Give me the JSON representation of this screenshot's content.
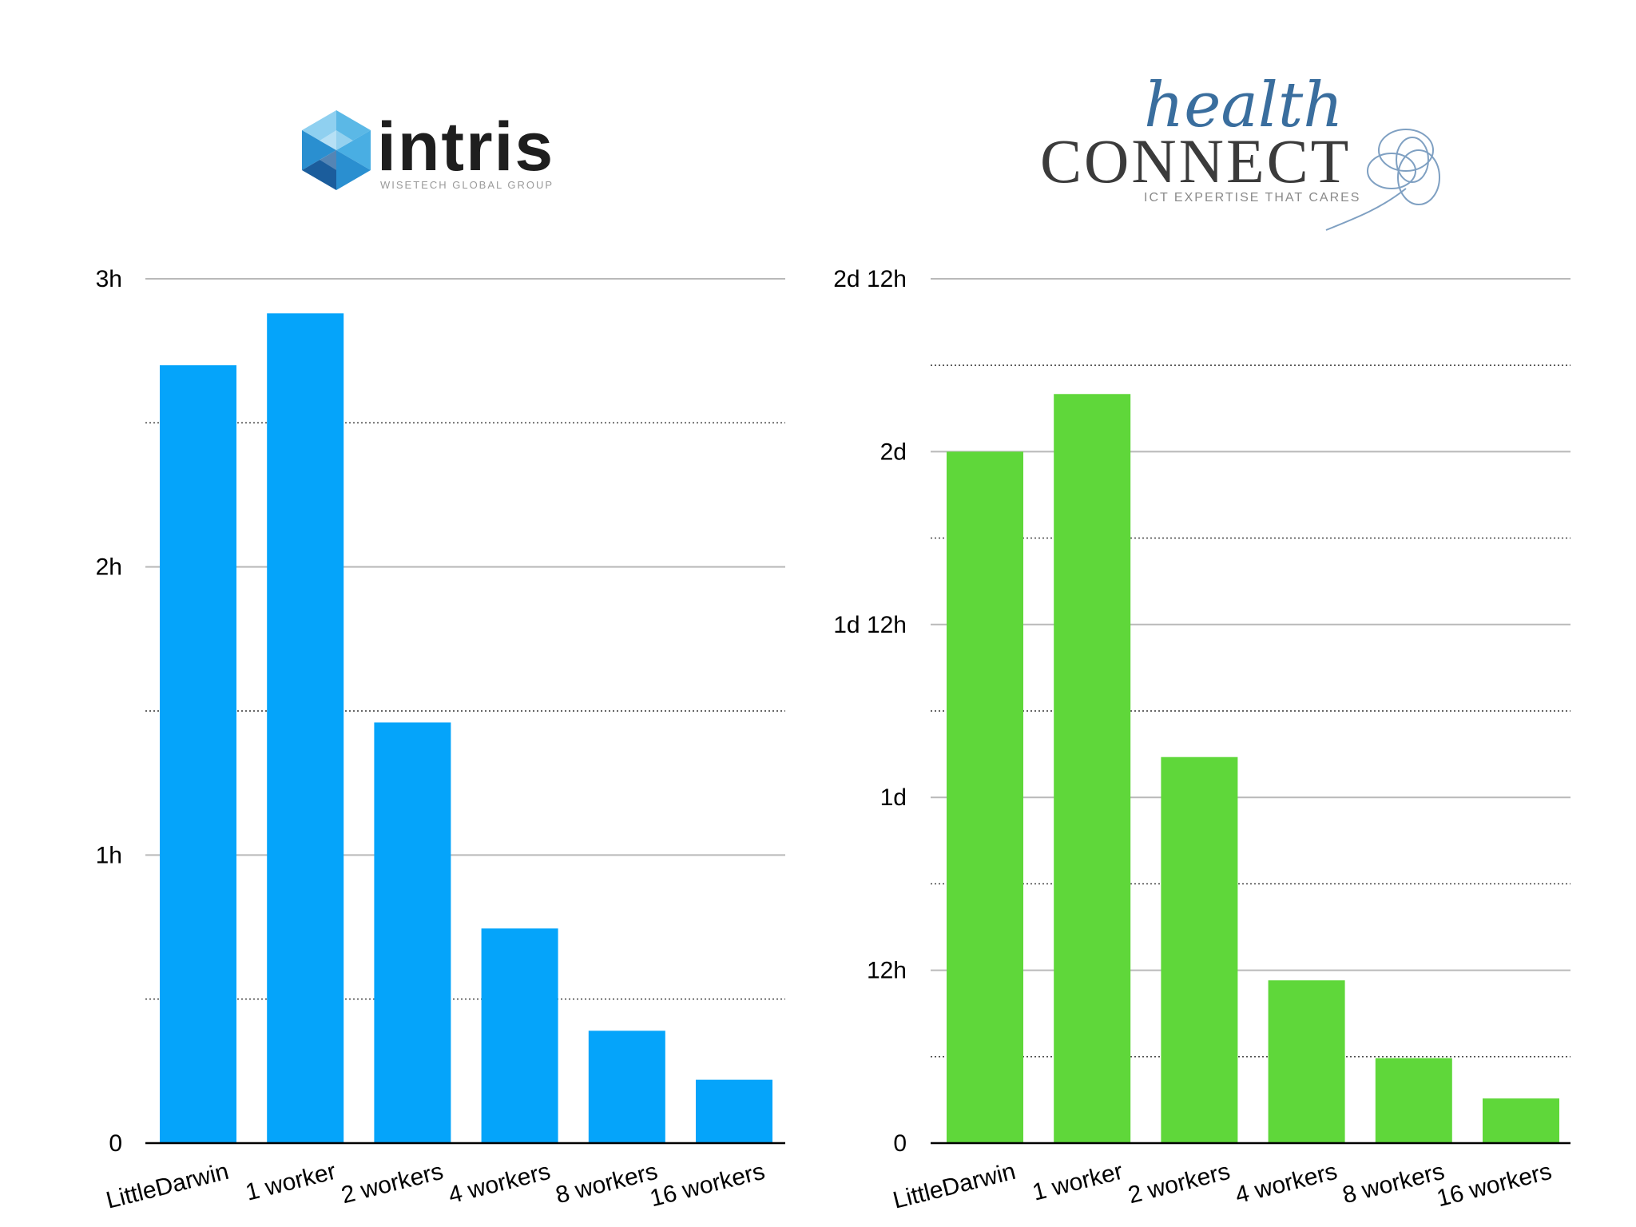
{
  "logos": {
    "left": {
      "name": "intris",
      "tagline": "WISETECH GLOBAL GROUP",
      "colors": {
        "cube_light": "#5bb8e6",
        "cube_mid": "#2a8fd0",
        "cube_dark": "#1b5d9c",
        "text": "#1e1e1e",
        "tagline": "#9a9a9a"
      }
    },
    "right": {
      "script": "health",
      "name": "CONNECT",
      "tagline": "ICT EXPERTISE THAT CARES",
      "colors": {
        "script": "#3a6e9e",
        "text": "#3b3b3b",
        "tagline": "#8a8a8a",
        "swirl": "#7fa0c2"
      }
    }
  },
  "chart_data": [
    {
      "type": "bar",
      "id": "intris",
      "categories": [
        "LittleDarwin",
        "1 worker",
        "2 workers",
        "4 workers",
        "8 workers",
        "16 workers"
      ],
      "values": [
        2.7,
        2.88,
        1.46,
        0.745,
        0.39,
        0.22
      ],
      "unit": "hours",
      "ylim": [
        0,
        3
      ],
      "major_ticks": [
        0,
        1,
        2,
        3
      ],
      "minor_ticks": [
        0.5,
        1.5,
        2.5
      ],
      "tick_labels": [
        "0",
        "1h",
        "2h",
        "3h"
      ],
      "bar_color": "#05a4fa",
      "grid": true,
      "title": "",
      "xlabel": "",
      "ylabel": ""
    },
    {
      "type": "bar",
      "id": "healthconnect",
      "categories": [
        "LittleDarwin",
        "1 worker",
        "2 workers",
        "4 workers",
        "8 workers",
        "16 workers"
      ],
      "values": [
        48,
        52,
        26.8,
        11.3,
        5.9,
        3.1
      ],
      "unit": "hours",
      "ylim": [
        0,
        60
      ],
      "major_ticks": [
        0,
        12,
        24,
        36,
        48,
        60
      ],
      "minor_ticks": [
        6,
        18,
        30,
        42,
        54
      ],
      "tick_labels": [
        "0",
        "12h",
        "1d",
        "1d 12h",
        "2d",
        "2d 12h"
      ],
      "bar_color": "#5fd73a",
      "grid": true,
      "title": "",
      "xlabel": "",
      "ylabel": ""
    }
  ]
}
